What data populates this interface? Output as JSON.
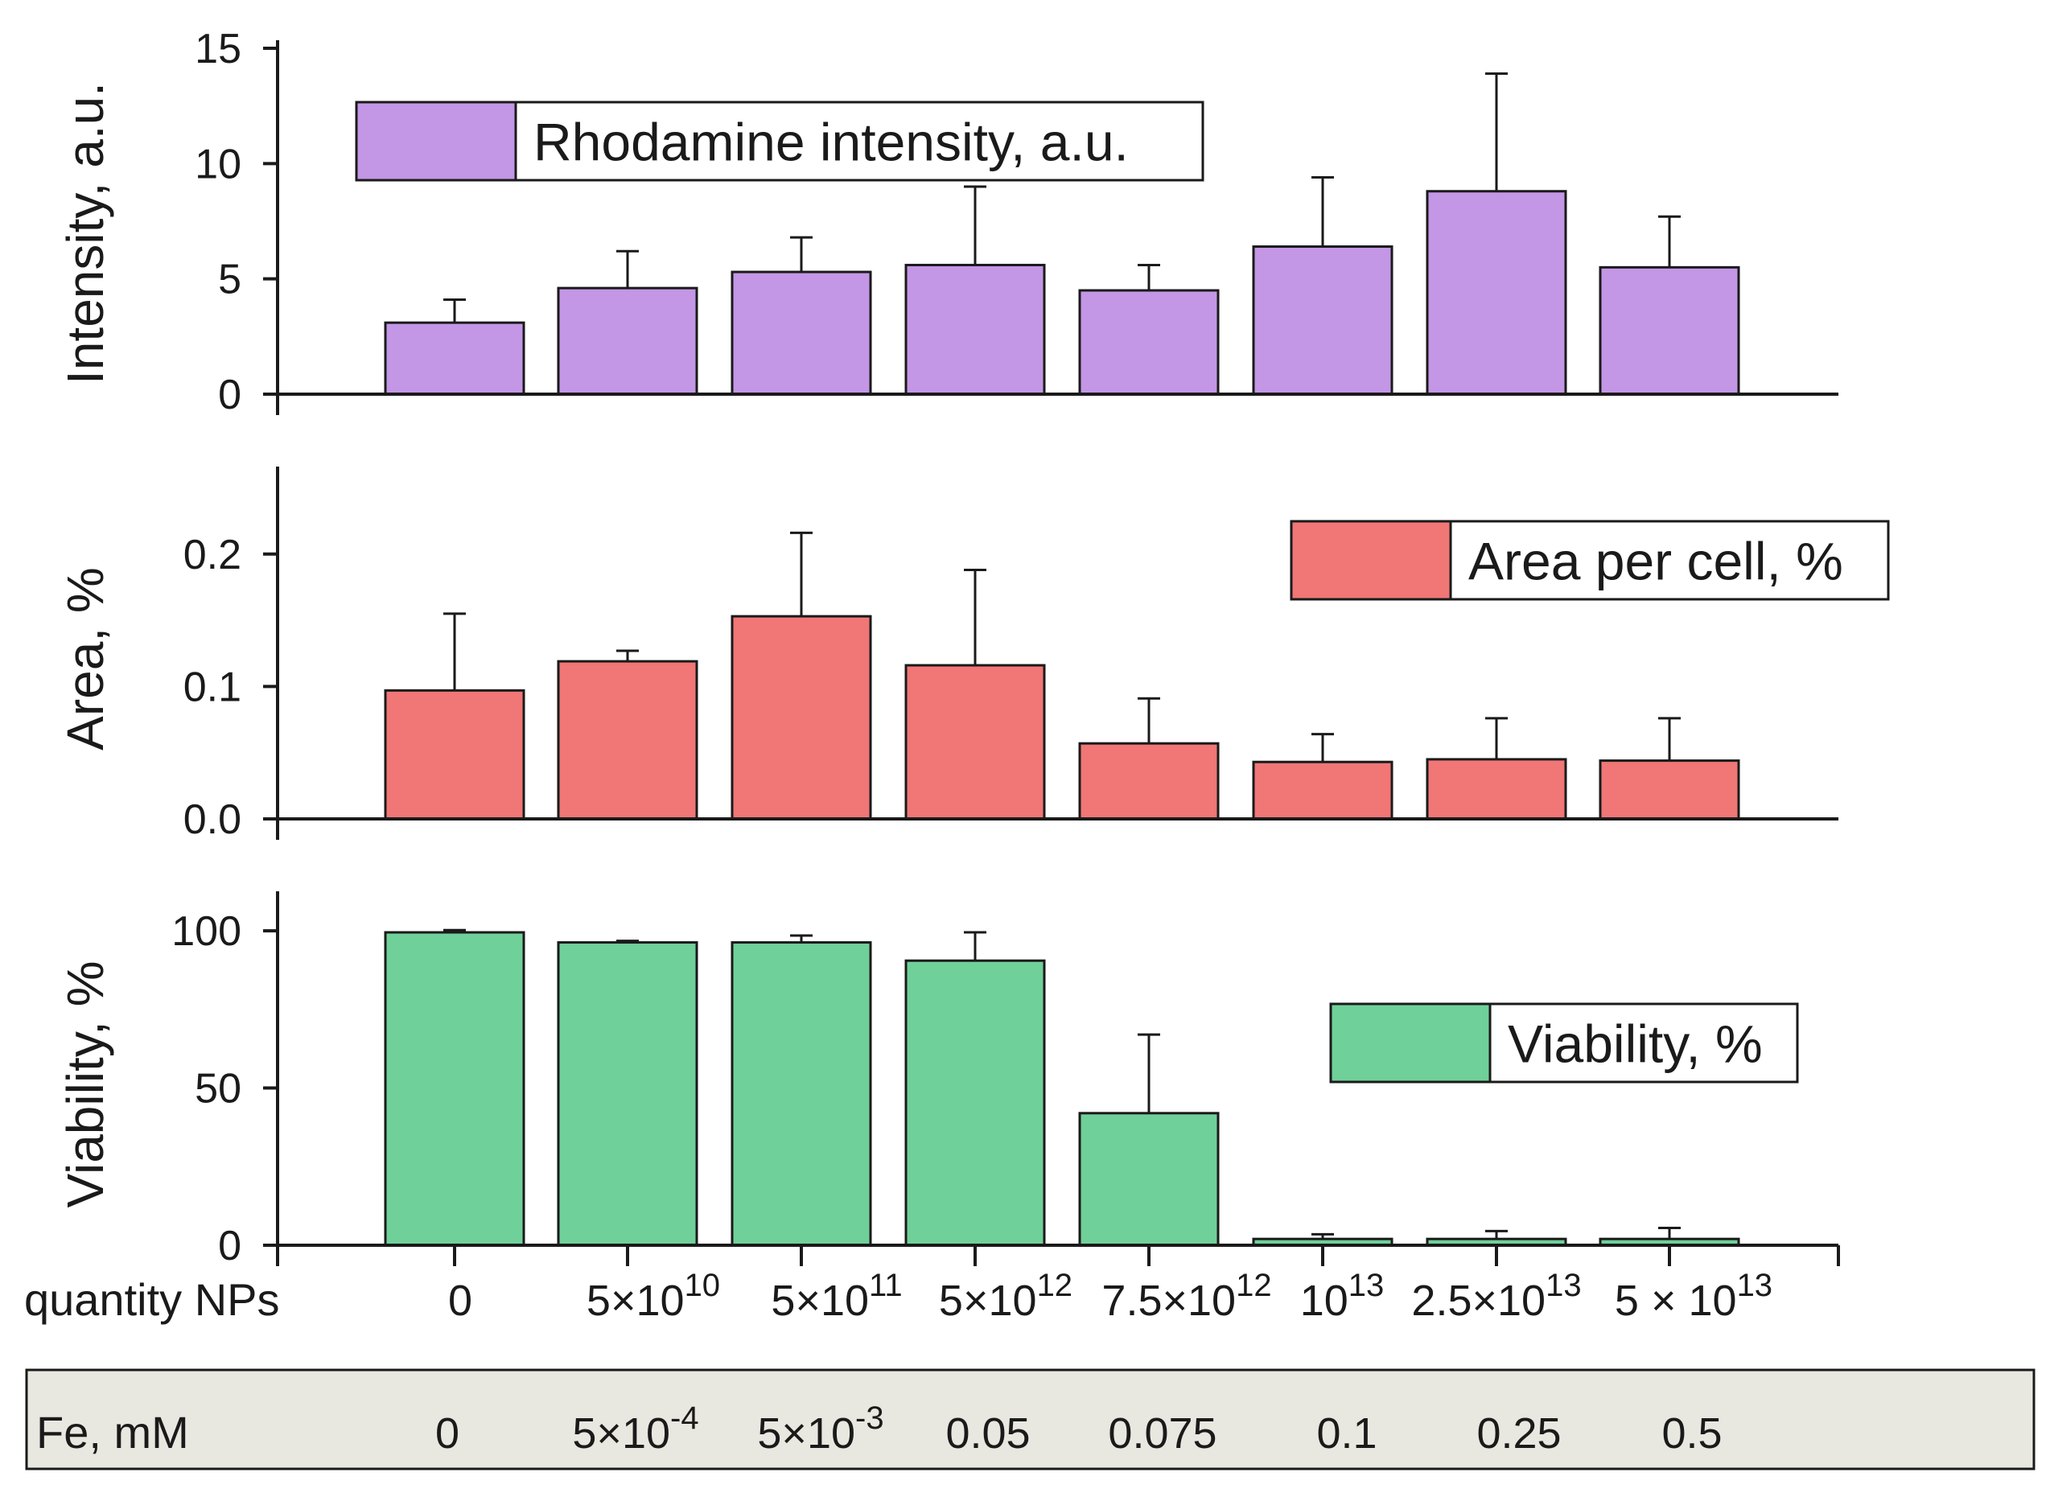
{
  "chart_data": [
    {
      "type": "bar",
      "ylabel": "Intensity, a.u.",
      "ylim": [
        0,
        15
      ],
      "yticks": [
        "0",
        "5",
        "10",
        "15"
      ],
      "legend": "Rhodamine intensity, a.u.",
      "legend_position": "top-left",
      "color": "#c496e6",
      "values": [
        3.1,
        4.6,
        5.3,
        5.6,
        4.5,
        6.4,
        8.8,
        5.5
      ],
      "errors": [
        1.0,
        1.6,
        1.5,
        3.4,
        1.1,
        3.0,
        5.1,
        2.2
      ]
    },
    {
      "type": "bar",
      "ylabel": "Area, %",
      "ylim": [
        0,
        0.26
      ],
      "yticks": [
        "0.0",
        "0.1",
        "0.2"
      ],
      "legend": "Area per cell, %",
      "legend_position": "top-right",
      "color": "#f17676",
      "values": [
        0.097,
        0.119,
        0.153,
        0.116,
        0.057,
        0.043,
        0.045,
        0.044
      ],
      "errors": [
        0.058,
        0.008,
        0.063,
        0.072,
        0.034,
        0.021,
        0.031,
        0.032
      ]
    },
    {
      "type": "bar",
      "ylabel": "Viability, %",
      "ylim": [
        0,
        110
      ],
      "yticks": [
        "0",
        "50",
        "100"
      ],
      "legend": "Viability, %",
      "legend_position": "right",
      "color": "#70d09a",
      "values": [
        99.5,
        96.3,
        96.3,
        90.5,
        42,
        2,
        2,
        2
      ],
      "errors": [
        0.7,
        0.5,
        2.2,
        9,
        25,
        1.5,
        2.5,
        3.5
      ]
    }
  ],
  "x_axis": {
    "label": "quantity NPs",
    "categories": [
      {
        "base": "0",
        "exp": ""
      },
      {
        "base": "5×10",
        "exp": "10"
      },
      {
        "base": "5×10",
        "exp": "11"
      },
      {
        "base": "5×10",
        "exp": "12"
      },
      {
        "base": "7.5×10",
        "exp": "12"
      },
      {
        "base": "10",
        "exp": "13"
      },
      {
        "base": "2.5×10",
        "exp": "13"
      },
      {
        "base": "5 × 10",
        "exp": "13"
      }
    ]
  },
  "fe_row": {
    "label": "Fe, mM",
    "background": "#e8e8e0",
    "values": [
      {
        "base": "0",
        "exp": ""
      },
      {
        "base": "5×10",
        "exp": "-4"
      },
      {
        "base": "5×10",
        "exp": "-3"
      },
      {
        "base": "0.05",
        "exp": ""
      },
      {
        "base": "0.075",
        "exp": ""
      },
      {
        "base": "0.1",
        "exp": ""
      },
      {
        "base": "0.25",
        "exp": ""
      },
      {
        "base": "0.5",
        "exp": ""
      }
    ]
  }
}
